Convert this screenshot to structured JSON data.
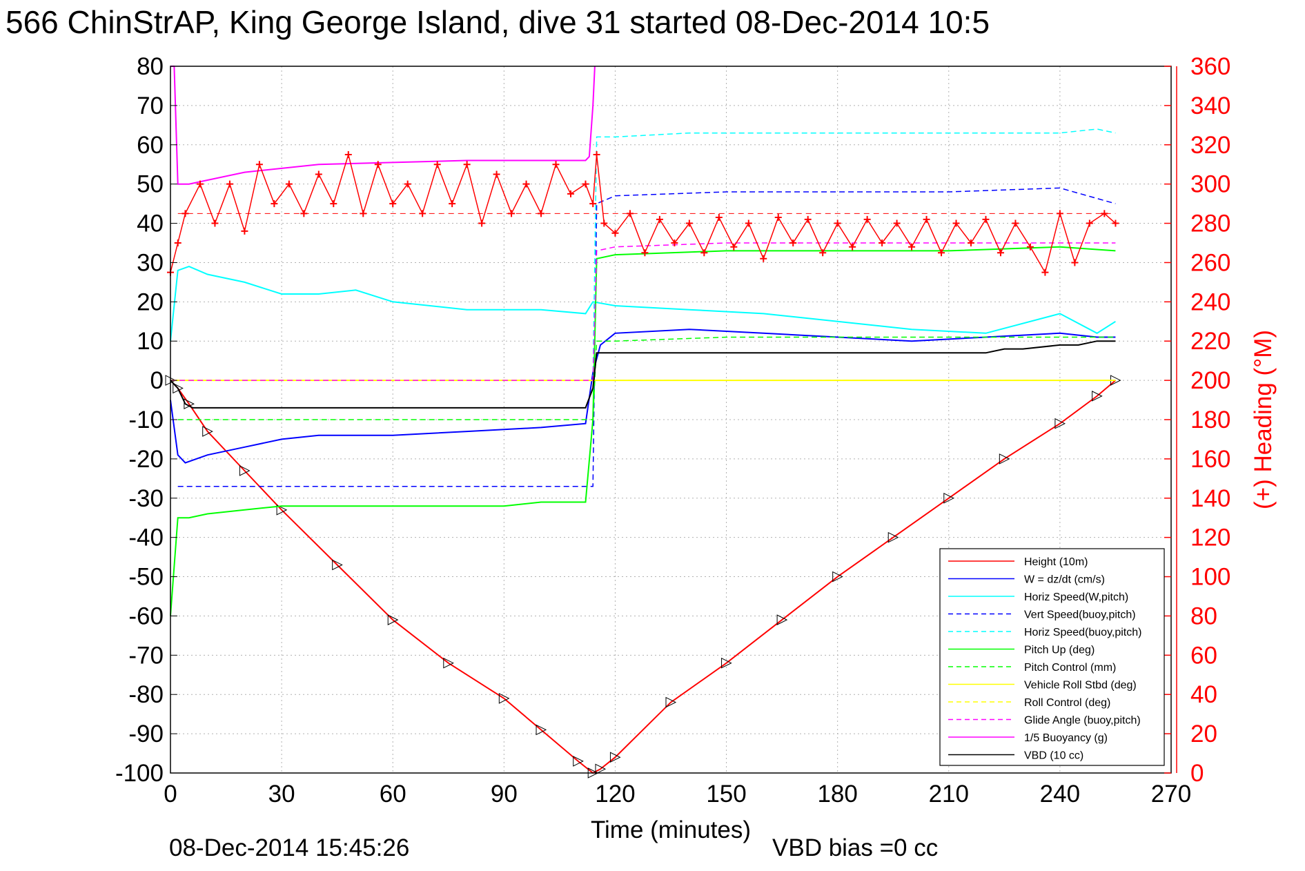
{
  "chart_data": {
    "type": "line",
    "title": "566 ChinStrAP, King George Island, dive 31 started 08-Dec-2014 10:5",
    "xlabel": "Time (minutes)",
    "ylabel_right": "(+) Heading (°M)",
    "footer_left": "08-Dec-2014 15:45:26",
    "footer_right": "VBD bias =0 cc",
    "xlim": [
      0,
      270
    ],
    "ylim": [
      -100,
      80
    ],
    "ylim_right": [
      0,
      360
    ],
    "xticks": [
      "0",
      "30",
      "60",
      "90",
      "120",
      "150",
      "180",
      "210",
      "240",
      "270"
    ],
    "yticks": [
      "80",
      "70",
      "60",
      "50",
      "40",
      "30",
      "20",
      "10",
      "0",
      "-10",
      "-20",
      "-30",
      "-40",
      "-50",
      "-60",
      "-70",
      "-80",
      "-90",
      "-100"
    ],
    "yticks_right": [
      "360",
      "340",
      "320",
      "300",
      "280",
      "260",
      "240",
      "220",
      "200",
      "180",
      "160",
      "140",
      "120",
      "100",
      "80",
      "60",
      "40",
      "20",
      "0"
    ],
    "grid": true,
    "legend_position": "bottom-right",
    "legend": [
      {
        "label": "Height (10m)",
        "color": "#ff0000",
        "dash": "solid"
      },
      {
        "label": "W = dz/dt (cm/s)",
        "color": "#0000ff",
        "dash": "solid"
      },
      {
        "label": "Horiz Speed(W,pitch)",
        "color": "#00ffff",
        "dash": "solid"
      },
      {
        "label": "Vert Speed(buoy,pitch)",
        "color": "#0000ff",
        "dash": "dashed"
      },
      {
        "label": "Horiz Speed(buoy,pitch)",
        "color": "#00ffff",
        "dash": "dashed"
      },
      {
        "label": "Pitch Up (deg)",
        "color": "#00ff00",
        "dash": "solid"
      },
      {
        "label": "Pitch Control (mm)",
        "color": "#00ff00",
        "dash": "dashed"
      },
      {
        "label": "Vehicle Roll Stbd (deg)",
        "color": "#ffff00",
        "dash": "solid"
      },
      {
        "label": "Roll Control (deg)",
        "color": "#ffff00",
        "dash": "dashed"
      },
      {
        "label": "Glide Angle (buoy,pitch)",
        "color": "#ff00ff",
        "dash": "dashed"
      },
      {
        "label": "1/5 Buoyancy (g)",
        "color": "#ff00ff",
        "dash": "solid"
      },
      {
        "label": "VBD (10 cc)",
        "color": "#000000",
        "dash": "solid"
      }
    ],
    "series": [
      {
        "name": "Height (10m)",
        "color": "#ff0000",
        "dash": "solid",
        "x": [
          0,
          2,
          5,
          10,
          20,
          30,
          45,
          60,
          75,
          90,
          100,
          110,
          114,
          116,
          120,
          135,
          150,
          165,
          180,
          195,
          210,
          225,
          240,
          250,
          255
        ],
        "y": [
          0,
          -2,
          -6,
          -13,
          -23,
          -33,
          -47,
          -61,
          -72,
          -81,
          -89,
          -97,
          -100,
          -99,
          -96,
          -82,
          -72,
          -61,
          -50,
          -40,
          -30,
          -20,
          -11,
          -4,
          0
        ]
      },
      {
        "name": "W = dz/dt (cm/s)",
        "color": "#0000ff",
        "dash": "solid",
        "x": [
          0,
          2,
          4,
          10,
          20,
          30,
          40,
          60,
          80,
          100,
          112,
          114,
          116,
          120,
          140,
          160,
          180,
          200,
          220,
          240,
          250,
          255
        ],
        "y": [
          -5,
          -19,
          -21,
          -19,
          -17,
          -15,
          -14,
          -14,
          -13,
          -12,
          -11,
          2,
          9,
          12,
          13,
          12,
          11,
          10,
          11,
          12,
          11,
          11
        ]
      },
      {
        "name": "Horiz Speed(W,pitch)",
        "color": "#00ffff",
        "dash": "solid",
        "x": [
          0,
          2,
          5,
          10,
          20,
          30,
          40,
          50,
          60,
          80,
          100,
          112,
          114,
          120,
          140,
          160,
          180,
          200,
          220,
          240,
          250,
          255
        ],
        "y": [
          10,
          28,
          29,
          27,
          25,
          22,
          22,
          23,
          20,
          18,
          18,
          17,
          20,
          19,
          18,
          17,
          15,
          13,
          12,
          17,
          12,
          15
        ]
      },
      {
        "name": "Vert Speed(buoy,pitch)",
        "color": "#0000ff",
        "dash": "dashed",
        "x": [
          2,
          10,
          30,
          60,
          90,
          114,
          115,
          120,
          150,
          180,
          210,
          240,
          255
        ],
        "y": [
          -27,
          -27,
          -27,
          -27,
          -27,
          -27,
          45,
          47,
          48,
          48,
          48,
          49,
          45
        ]
      },
      {
        "name": "Horiz Speed(buoy,pitch)",
        "color": "#00ffff",
        "dash": "dashed",
        "x": [
          114,
          115,
          120,
          140,
          160,
          180,
          200,
          220,
          240,
          250,
          255
        ],
        "y": [
          0,
          62,
          62,
          63,
          63,
          63,
          63,
          63,
          63,
          64,
          63
        ]
      },
      {
        "name": "Pitch Up (deg)",
        "color": "#00ff00",
        "dash": "solid",
        "x": [
          0,
          2,
          5,
          10,
          20,
          30,
          50,
          70,
          90,
          100,
          112,
          114,
          115,
          120,
          150,
          180,
          210,
          240,
          255
        ],
        "y": [
          -60,
          -35,
          -35,
          -34,
          -33,
          -32,
          -32,
          -32,
          -32,
          -31,
          -31,
          -10,
          31,
          32,
          33,
          33,
          33,
          34,
          33
        ]
      },
      {
        "name": "Pitch Control (mm)",
        "color": "#00ff00",
        "dash": "dashed",
        "x": [
          2,
          10,
          30,
          60,
          90,
          114,
          115,
          120,
          150,
          180,
          210,
          240,
          255
        ],
        "y": [
          -10,
          -10,
          -10,
          -10,
          -10,
          -10,
          10,
          10,
          11,
          11,
          11,
          11,
          11
        ]
      },
      {
        "name": "Vehicle Roll Stbd (deg)",
        "color": "#ffff00",
        "dash": "solid",
        "x": [
          0,
          30,
          60,
          90,
          114,
          120,
          150,
          180,
          210,
          240,
          255
        ],
        "y": [
          0,
          0,
          0,
          0,
          0,
          0,
          0,
          0,
          0,
          0,
          0
        ]
      },
      {
        "name": "Roll Control (deg)",
        "color": "#ffff00",
        "dash": "dashed",
        "x": [
          0,
          30,
          60,
          90,
          114,
          120,
          150,
          180,
          210,
          240,
          255
        ],
        "y": [
          0,
          0,
          0,
          0,
          0,
          0,
          0,
          0,
          0,
          0,
          0
        ]
      },
      {
        "name": "Glide Angle (buoy,pitch)",
        "color": "#ff00ff",
        "dash": "dashed",
        "x": [
          0,
          30,
          60,
          90,
          114,
          115,
          120,
          150,
          180,
          210,
          240,
          255
        ],
        "y": [
          0,
          0,
          0,
          0,
          0,
          33,
          34,
          35,
          35,
          35,
          35,
          35
        ]
      },
      {
        "name": "1/5 Buoyancy (g)",
        "color": "#ff00ff",
        "dash": "solid",
        "x": [
          0,
          1,
          2,
          5,
          10,
          20,
          40,
          60,
          80,
          100,
          112,
          113,
          114,
          114.5
        ],
        "y": [
          80,
          80,
          50,
          50,
          51,
          53,
          55,
          55.5,
          56,
          56,
          56,
          57,
          70,
          80
        ]
      },
      {
        "name": "VBD (10 cc)",
        "color": "#000000",
        "dash": "solid",
        "x": [
          0,
          2,
          4,
          6,
          30,
          60,
          90,
          112,
          114,
          115,
          120,
          150,
          180,
          200,
          210,
          220,
          225,
          230,
          240,
          245,
          250,
          255
        ],
        "y": [
          0,
          -2,
          -6,
          -7,
          -7,
          -7,
          -7,
          -7,
          -2,
          7,
          7,
          7,
          7,
          7,
          7,
          7,
          8,
          8,
          9,
          9,
          10,
          10
        ]
      },
      {
        "name": "Heading",
        "axis": "right",
        "color": "#ff0000",
        "marker": "+",
        "x": [
          0,
          2,
          4,
          8,
          12,
          16,
          20,
          24,
          28,
          32,
          36,
          40,
          44,
          48,
          52,
          56,
          60,
          64,
          68,
          72,
          76,
          80,
          84,
          88,
          92,
          96,
          100,
          104,
          108,
          112,
          114,
          115,
          117,
          120,
          124,
          128,
          132,
          136,
          140,
          144,
          148,
          152,
          156,
          160,
          164,
          168,
          172,
          176,
          180,
          184,
          188,
          192,
          196,
          200,
          204,
          208,
          212,
          216,
          220,
          224,
          228,
          232,
          236,
          240,
          244,
          248,
          252,
          255
        ],
        "y": [
          255,
          270,
          285,
          300,
          280,
          300,
          276,
          310,
          290,
          300,
          285,
          305,
          290,
          315,
          285,
          310,
          290,
          300,
          285,
          310,
          290,
          310,
          280,
          305,
          285,
          300,
          285,
          310,
          295,
          300,
          290,
          315,
          280,
          275,
          285,
          265,
          282,
          270,
          280,
          265,
          283,
          268,
          280,
          262,
          283,
          270,
          282,
          265,
          280,
          268,
          282,
          270,
          280,
          268,
          282,
          265,
          280,
          270,
          282,
          265,
          280,
          268,
          255,
          285,
          260,
          280,
          285,
          280
        ]
      }
    ],
    "heading_ref_line": {
      "color": "#ff0000",
      "dash": "dashed",
      "axis": "right",
      "value": 285
    }
  }
}
